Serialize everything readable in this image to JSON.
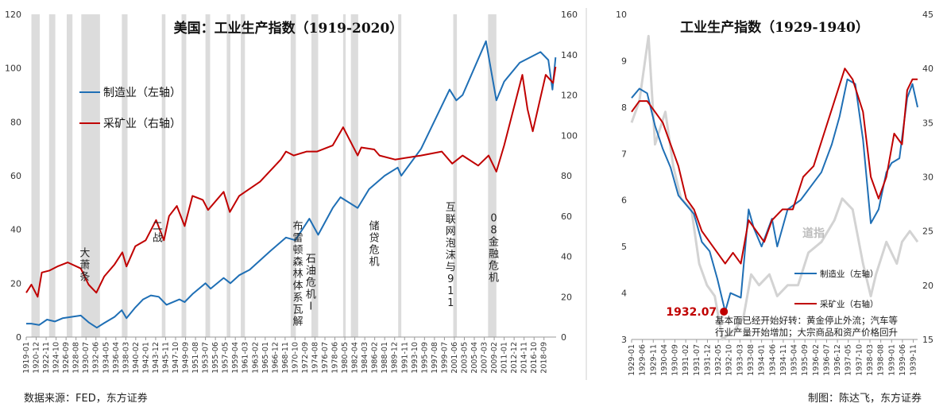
{
  "footer": {
    "source": "数据来源：FED，东方证券",
    "credit": "制图：陈达飞，东方证券"
  },
  "colors": {
    "manufacturing": "#1f6fb5",
    "mining": "#c00000",
    "dow": "#d3d3d3",
    "recession": "#dcdcdc"
  },
  "chart_data": [
    {
      "type": "line",
      "title": "美国：工业生产指数（1919-2020）",
      "ylim": [
        0,
        120
      ],
      "y2lim": [
        0,
        160
      ],
      "yticks": [
        0,
        20,
        40,
        60,
        80,
        100,
        120
      ],
      "y2ticks": [
        0,
        20,
        40,
        60,
        80,
        100,
        120,
        140,
        160
      ],
      "xlim": [
        1919.0,
        2021.0
      ],
      "xticks": [
        "1919-01",
        "1920-12",
        "1922-11",
        "1924-10",
        "1926-09",
        "1928-08",
        "1930-07",
        "1932-06",
        "1934-05",
        "1936-04",
        "1938-03",
        "1940-02",
        "1942-01",
        "1943-12",
        "1945-11",
        "1947-10",
        "1949-09",
        "1951-08",
        "1953-07",
        "1955-06",
        "1957-05",
        "1959-04",
        "1961-03",
        "1963-02",
        "1965-01",
        "1966-12",
        "1968-11",
        "1970-10",
        "1972-09",
        "1974-08",
        "1976-07",
        "1978-06",
        "1980-05",
        "1982-04",
        "1984-03",
        "1986-02",
        "1988-01",
        "1989-12",
        "1991-11",
        "1993-10",
        "1995-09",
        "1997-08",
        "1999-07",
        "2001-06",
        "2003-05",
        "2005-04",
        "2007-03",
        "2009-02",
        "2011-01",
        "2012-12",
        "2014-11",
        "2016-10",
        "2018-09"
      ],
      "recessions": [
        [
          1920.0,
          1921.6
        ],
        [
          1923.4,
          1924.6
        ],
        [
          1926.8,
          1927.9
        ],
        [
          1929.6,
          1933.2
        ],
        [
          1937.4,
          1938.5
        ],
        [
          1945.1,
          1945.8
        ],
        [
          1948.9,
          1949.8
        ],
        [
          1953.5,
          1954.4
        ],
        [
          1957.6,
          1958.3
        ],
        [
          1960.3,
          1961.1
        ],
        [
          1969.9,
          1970.9
        ],
        [
          1973.9,
          1975.2
        ],
        [
          1980.0,
          1980.5
        ],
        [
          1981.5,
          1982.9
        ],
        [
          1990.6,
          1991.2
        ],
        [
          2001.2,
          2001.9
        ],
        [
          2007.9,
          2009.5
        ]
      ],
      "series": [
        {
          "name": "制造业（左轴）",
          "axis": "left",
          "x": [
            1919.0,
            1920.0,
            1921.5,
            1923.0,
            1924.5,
            1926.0,
            1929.5,
            1931.0,
            1932.6,
            1934.0,
            1936.0,
            1937.4,
            1938.3,
            1940.0,
            1941.5,
            1943.0,
            1944.5,
            1946.0,
            1948.5,
            1949.5,
            1951.0,
            1953.5,
            1954.5,
            1957.0,
            1958.3,
            1960.0,
            1962.0,
            1966.0,
            1969.0,
            1970.8,
            1973.5,
            1975.2,
            1978.0,
            1979.5,
            1982.8,
            1985.0,
            1988.0,
            1990.5,
            1991.2,
            1995.0,
            2000.5,
            2001.8,
            2003.0,
            2007.5,
            2009.5,
            2011.0,
            2014.0,
            2018.0,
            2019.5,
            2020.3,
            2020.9
          ],
          "values": [
            5,
            5,
            4.5,
            6.5,
            5.8,
            7,
            8,
            5.5,
            3.5,
            5.2,
            7.5,
            10,
            7,
            11,
            14,
            15.5,
            15,
            12,
            14,
            13,
            16,
            20,
            18,
            22,
            20,
            23,
            25,
            32,
            37,
            36,
            44,
            38,
            48,
            52,
            48,
            55,
            60,
            63,
            60,
            70,
            92,
            88,
            90,
            110,
            88,
            95,
            102,
            106,
            103,
            92,
            104
          ]
        },
        {
          "name": "采矿业（右轴）",
          "axis": "right",
          "x": [
            1919.0,
            1920.0,
            1921.2,
            1922.0,
            1923.5,
            1925.0,
            1927.0,
            1929.5,
            1931.0,
            1932.5,
            1934.0,
            1936.0,
            1937.5,
            1938.3,
            1940.0,
            1942.0,
            1944.0,
            1945.5,
            1946.5,
            1948.0,
            1949.5,
            1951.0,
            1953.0,
            1954.0,
            1957.0,
            1958.2,
            1960.0,
            1964.0,
            1968.0,
            1969.0,
            1970.5,
            1973.0,
            1975.0,
            1978.0,
            1980.0,
            1982.8,
            1983.5,
            1986.0,
            1987.0,
            1990.0,
            1995.0,
            1999.0,
            2001.0,
            2003.0,
            2006.0,
            2008.0,
            2009.5,
            2011.0,
            2014.5,
            2015.5,
            2016.5,
            2019.0,
            2020.4,
            2020.9
          ],
          "values": [
            22,
            26,
            20,
            32,
            33,
            35,
            37,
            34,
            26,
            22,
            30,
            36,
            42,
            35,
            45,
            48,
            58,
            48,
            60,
            65,
            55,
            70,
            68,
            63,
            72,
            62,
            70,
            77,
            88,
            92,
            90,
            92,
            92,
            95,
            104,
            90,
            94,
            93,
            90,
            88,
            90,
            92,
            86,
            90,
            85,
            90,
            82,
            95,
            130,
            113,
            102,
            130,
            126,
            134
          ]
        }
      ],
      "annotations": [
        {
          "x": 1930.3,
          "y": 30,
          "text": "大萧条"
        },
        {
          "x": 1944.3,
          "y": 40,
          "text": "二战"
        },
        {
          "x": 1971.3,
          "y": 40,
          "text": "布雷顿森林体系瓦解"
        },
        {
          "x": 1973.8,
          "y": 28,
          "text": "石油危机Ⅰ"
        },
        {
          "x": 1986.0,
          "y": 40,
          "text": "储贷危机"
        },
        {
          "x": 2000.7,
          "y": 47,
          "text": "互联网泡沫与911"
        },
        {
          "x": 2009.0,
          "y": 43,
          "text": "08金融危机"
        }
      ],
      "legend": [
        "制造业（左轴）",
        "采矿业（右轴）"
      ]
    },
    {
      "type": "line",
      "title": "工业生产指数（1929-1940）",
      "ylim": [
        3,
        10
      ],
      "y2lim": [
        15,
        45
      ],
      "yticks": [
        3,
        4,
        5,
        6,
        7,
        8,
        9,
        10
      ],
      "y2ticks": [
        15,
        20,
        25,
        30,
        35,
        40,
        45
      ],
      "xlim": [
        1929.0,
        1940.0
      ],
      "xticks": [
        "1929-01",
        "1929-06",
        "1929-11",
        "1930-04",
        "1930-09",
        "1931-02",
        "1931-07",
        "1931-12",
        "1932-05",
        "1932-10",
        "1933-03",
        "1933-08",
        "1934-01",
        "1934-06",
        "1934-11",
        "1935-04",
        "1935-09",
        "1936-02",
        "1936-07",
        "1936-12",
        "1937-05",
        "1937-10",
        "1938-03",
        "1938-08",
        "1939-01",
        "1939-06",
        "1939-11"
      ],
      "series": [
        {
          "name": "道指",
          "axis": "right",
          "x": [
            1929.0,
            1929.3,
            1929.65,
            1929.9,
            1930.3,
            1930.6,
            1930.9,
            1931.3,
            1931.6,
            1931.9,
            1932.2,
            1932.5,
            1933.0,
            1933.3,
            1933.6,
            1933.9,
            1934.3,
            1934.6,
            1935.0,
            1935.4,
            1935.8,
            1936.3,
            1936.8,
            1937.1,
            1937.5,
            1937.9,
            1938.2,
            1938.4,
            1938.8,
            1939.2,
            1939.4,
            1939.7,
            1940.0
          ],
          "values": [
            35,
            37,
            43,
            33,
            36,
            31,
            28,
            27,
            22,
            20,
            19,
            15,
            16,
            17,
            21,
            20,
            21,
            19,
            20,
            20,
            23,
            24,
            26,
            28,
            27,
            22,
            19,
            21,
            24,
            22,
            24,
            25,
            24
          ]
        },
        {
          "name": "制造业（左轴）",
          "axis": "left",
          "x": [
            1929.0,
            1929.3,
            1929.6,
            1929.9,
            1930.2,
            1930.5,
            1930.8,
            1931.1,
            1931.4,
            1931.7,
            1932.0,
            1932.3,
            1932.6,
            1932.8,
            1933.2,
            1933.5,
            1933.7,
            1934.0,
            1934.4,
            1934.6,
            1935.0,
            1935.5,
            1935.9,
            1936.3,
            1936.7,
            1937.0,
            1937.3,
            1937.6,
            1937.9,
            1938.2,
            1938.5,
            1938.8,
            1939.0,
            1939.3,
            1939.6,
            1939.8,
            1940.0
          ],
          "values": [
            8.2,
            8.4,
            8.3,
            7.6,
            7.1,
            6.7,
            6.1,
            5.9,
            5.7,
            5.1,
            4.9,
            4.3,
            3.6,
            4.0,
            3.9,
            5.8,
            5.4,
            5.0,
            5.6,
            5.0,
            5.8,
            6.0,
            6.3,
            6.6,
            7.2,
            7.8,
            8.6,
            8.5,
            7.3,
            5.5,
            5.8,
            6.6,
            6.8,
            6.9,
            8.2,
            8.5,
            8.0
          ]
        },
        {
          "name": "采矿业（右轴）",
          "axis": "right",
          "x": [
            1929.0,
            1929.3,
            1929.6,
            1929.9,
            1930.2,
            1930.5,
            1930.8,
            1931.1,
            1931.4,
            1931.7,
            1932.0,
            1932.3,
            1932.6,
            1932.9,
            1933.2,
            1933.5,
            1933.8,
            1934.1,
            1934.4,
            1934.8,
            1935.2,
            1935.6,
            1936.0,
            1936.4,
            1936.8,
            1937.2,
            1937.5,
            1937.9,
            1938.2,
            1938.5,
            1938.8,
            1939.1,
            1939.4,
            1939.6,
            1939.8,
            1940.0
          ],
          "values": [
            36,
            37,
            37,
            36,
            35,
            33,
            31,
            28,
            27,
            25,
            24,
            23,
            22,
            23,
            22,
            26,
            25,
            24,
            26,
            27,
            27,
            30,
            31,
            34,
            37,
            40,
            39,
            36,
            30,
            28,
            30,
            34,
            33,
            38,
            39,
            39
          ]
        }
      ],
      "marker": {
        "label": "1932.07",
        "x": 1932.55,
        "y": 3.6
      },
      "note": "基本面已经开始好转：黄金停止外流；汽车等行业产量开始增加；大宗商品和资产价格回升",
      "note_lines": [
        "基本面已经开始好转：黄金停止外流；汽车等",
        "行业产量开始增加；大宗商品和资产价格回升"
      ],
      "dow_label": "道指",
      "legend": [
        "制造业（左轴）",
        "采矿业（右轴）"
      ]
    }
  ]
}
